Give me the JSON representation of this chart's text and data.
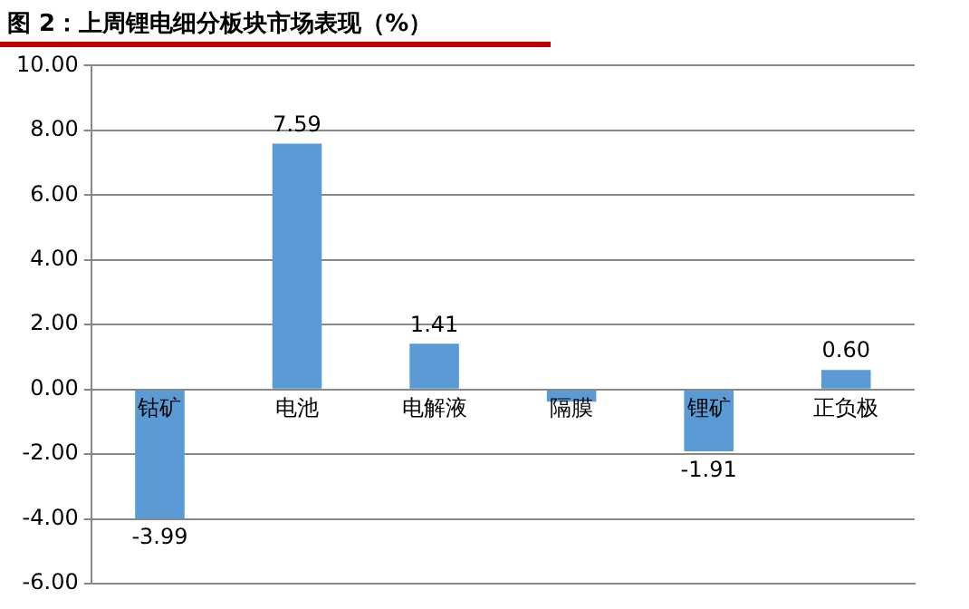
{
  "chart_data": {
    "type": "bar",
    "title": "图 2：上周锂电细分板块市场表现（%）",
    "categories": [
      "钴矿",
      "电池",
      "电解液",
      "隔膜",
      "锂矿",
      "正负极"
    ],
    "values": [
      -3.99,
      7.59,
      1.41,
      -0.38,
      -1.91,
      0.6
    ],
    "value_labels": [
      "-3.99",
      "7.59",
      "1.41",
      null,
      "-1.91",
      "0.60"
    ],
    "color": "#5b9bd5",
    "ylim": [
      -6,
      10
    ],
    "yticks": [
      {
        "value": -6,
        "label": "-6.00"
      },
      {
        "value": -4,
        "label": "-4.00"
      },
      {
        "value": -2,
        "label": "-2.00"
      },
      {
        "value": 0,
        "label": "0.00"
      },
      {
        "value": 2,
        "label": "2.00"
      },
      {
        "value": 4,
        "label": "4.00"
      },
      {
        "value": 6,
        "label": "6.00"
      },
      {
        "value": 8,
        "label": "8.00"
      },
      {
        "value": 10,
        "label": "10.00"
      }
    ],
    "grid": "y",
    "legend": false
  }
}
